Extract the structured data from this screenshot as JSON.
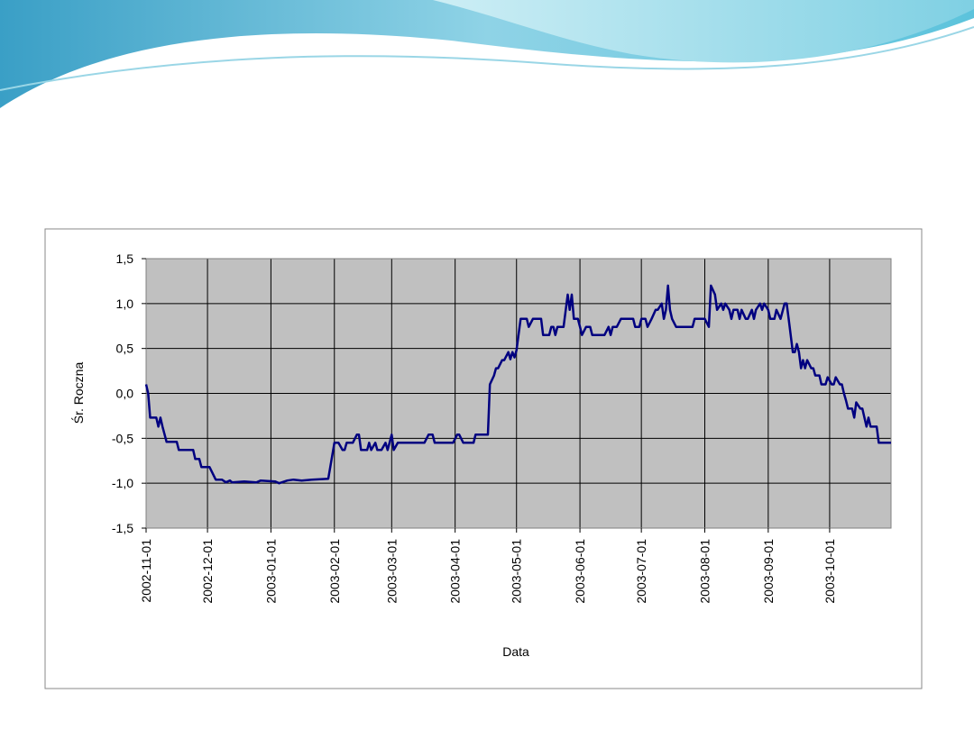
{
  "chart_data": {
    "type": "line",
    "xlabel": "Data",
    "ylabel": "Śr. Roczna",
    "xlim": [
      "2002-11-01",
      "2003-10-31"
    ],
    "xticks": [
      "2002-11-01",
      "2002-12-01",
      "2003-01-01",
      "2003-02-01",
      "2003-03-01",
      "2003-04-01",
      "2003-05-01",
      "2003-06-01",
      "2003-07-01",
      "2003-08-01",
      "2003-09-01",
      "2003-10-01"
    ],
    "ylim": [
      -1.5,
      1.5
    ],
    "yticks": [
      {
        "value": -1.5,
        "label": "-1,5"
      },
      {
        "value": -1,
        "label": "-1,0"
      },
      {
        "value": -0.5,
        "label": "-0,5"
      },
      {
        "value": 0,
        "label": "0,0"
      },
      {
        "value": 0.5,
        "label": "0,5"
      },
      {
        "value": 1,
        "label": "1,0"
      },
      {
        "value": 1.5,
        "label": "1,5"
      }
    ],
    "grid": true,
    "x": [
      "2002-11-01",
      "2002-11-02",
      "2002-11-03",
      "2002-11-06",
      "2002-11-07",
      "2002-11-08",
      "2002-11-09",
      "2002-11-11",
      "2002-11-16",
      "2002-11-17",
      "2002-11-24",
      "2002-11-25",
      "2002-11-27",
      "2002-11-28",
      "2002-12-02",
      "2002-12-05",
      "2002-12-08",
      "2002-12-10",
      "2002-12-12",
      "2002-12-13",
      "2002-12-19",
      "2002-12-25",
      "2002-12-27",
      "2003-01-03",
      "2003-01-05",
      "2003-01-09",
      "2003-01-12",
      "2003-01-16",
      "2003-01-21",
      "2003-01-29",
      "2003-02-01",
      "2003-02-03",
      "2003-02-05",
      "2003-02-06",
      "2003-02-07",
      "2003-02-10",
      "2003-02-12",
      "2003-02-13",
      "2003-02-14",
      "2003-02-17",
      "2003-02-18",
      "2003-02-19",
      "2003-02-21",
      "2003-02-22",
      "2003-02-24",
      "2003-02-26",
      "2003-02-27",
      "2003-03-01",
      "2003-03-02",
      "2003-03-04",
      "2003-03-17",
      "2003-03-19",
      "2003-03-21",
      "2003-03-22",
      "2003-03-31",
      "2003-04-02",
      "2003-04-03",
      "2003-04-05",
      "2003-04-10",
      "2003-04-11",
      "2003-04-17",
      "2003-04-18",
      "2003-04-20",
      "2003-04-21",
      "2003-04-22",
      "2003-04-24",
      "2003-04-25",
      "2003-04-27",
      "2003-04-28",
      "2003-04-29",
      "2003-04-30",
      "2003-05-01",
      "2003-05-03",
      "2003-05-06",
      "2003-05-07",
      "2003-05-09",
      "2003-05-13",
      "2003-05-14",
      "2003-05-17",
      "2003-05-18",
      "2003-05-19",
      "2003-05-20",
      "2003-05-21",
      "2003-05-24",
      "2003-05-26",
      "2003-05-27",
      "2003-05-28",
      "2003-05-29",
      "2003-05-31",
      "2003-06-01",
      "2003-06-02",
      "2003-06-04",
      "2003-06-06",
      "2003-06-07",
      "2003-06-13",
      "2003-06-15",
      "2003-06-16",
      "2003-06-17",
      "2003-06-19",
      "2003-06-21",
      "2003-06-27",
      "2003-06-28",
      "2003-06-30",
      "2003-07-01",
      "2003-07-03",
      "2003-07-04",
      "2003-07-06",
      "2003-07-08",
      "2003-07-09",
      "2003-07-11",
      "2003-07-12",
      "2003-07-13",
      "2003-07-14",
      "2003-07-15",
      "2003-07-16",
      "2003-07-18",
      "2003-07-26",
      "2003-07-27",
      "2003-08-01",
      "2003-08-03",
      "2003-08-04",
      "2003-08-06",
      "2003-08-07",
      "2003-08-09",
      "2003-08-10",
      "2003-08-11",
      "2003-08-13",
      "2003-08-14",
      "2003-08-15",
      "2003-08-17",
      "2003-08-18",
      "2003-08-19",
      "2003-08-21",
      "2003-08-22",
      "2003-08-24",
      "2003-08-25",
      "2003-08-26",
      "2003-08-28",
      "2003-08-29",
      "2003-08-30",
      "2003-09-01",
      "2003-09-02",
      "2003-09-04",
      "2003-09-05",
      "2003-09-07",
      "2003-09-09",
      "2003-09-10",
      "2003-09-11",
      "2003-09-13",
      "2003-09-14",
      "2003-09-15",
      "2003-09-16",
      "2003-09-17",
      "2003-09-18",
      "2003-09-19",
      "2003-09-20",
      "2003-09-22",
      "2003-09-23",
      "2003-09-24",
      "2003-09-26",
      "2003-09-27",
      "2003-09-29",
      "2003-09-30",
      "2003-10-02",
      "2003-10-03",
      "2003-10-04",
      "2003-10-06",
      "2003-10-07",
      "2003-10-08",
      "2003-10-09",
      "2003-10-10",
      "2003-10-12",
      "2003-10-13",
      "2003-10-14",
      "2003-10-16",
      "2003-10-17",
      "2003-10-18",
      "2003-10-19",
      "2003-10-20",
      "2003-10-21",
      "2003-10-24",
      "2003-10-25",
      "2003-10-31"
    ],
    "series": [
      {
        "name": "Śr. Roczna",
        "color": "#000080",
        "values": [
          0.1,
          0.0,
          -0.27,
          -0.27,
          -0.37,
          -0.27,
          -0.37,
          -0.54,
          -0.54,
          -0.63,
          -0.63,
          -0.73,
          -0.73,
          -0.82,
          -0.82,
          -0.96,
          -0.96,
          -0.99,
          -0.97,
          -0.99,
          -0.98,
          -0.99,
          -0.97,
          -0.98,
          -1.0,
          -0.97,
          -0.96,
          -0.97,
          -0.96,
          -0.95,
          -0.55,
          -0.55,
          -0.63,
          -0.63,
          -0.55,
          -0.55,
          -0.46,
          -0.46,
          -0.63,
          -0.63,
          -0.55,
          -0.63,
          -0.55,
          -0.63,
          -0.63,
          -0.55,
          -0.63,
          -0.46,
          -0.63,
          -0.55,
          -0.55,
          -0.46,
          -0.46,
          -0.55,
          -0.55,
          -0.46,
          -0.46,
          -0.55,
          -0.55,
          -0.46,
          -0.46,
          0.1,
          0.2,
          0.28,
          0.28,
          0.37,
          0.37,
          0.46,
          0.38,
          0.46,
          0.4,
          0.48,
          0.83,
          0.83,
          0.74,
          0.83,
          0.83,
          0.65,
          0.65,
          0.74,
          0.74,
          0.65,
          0.74,
          0.74,
          1.1,
          0.93,
          1.1,
          0.83,
          0.83,
          0.74,
          0.65,
          0.74,
          0.74,
          0.65,
          0.65,
          0.74,
          0.65,
          0.74,
          0.74,
          0.83,
          0.83,
          0.74,
          0.74,
          0.83,
          0.83,
          0.74,
          0.83,
          0.93,
          0.93,
          1.0,
          0.83,
          0.93,
          1.2,
          0.93,
          0.83,
          0.74,
          0.74,
          0.83,
          0.83,
          0.74,
          1.2,
          1.1,
          0.93,
          1.0,
          0.93,
          1.0,
          0.93,
          0.83,
          0.93,
          0.93,
          0.83,
          0.93,
          0.83,
          0.83,
          0.93,
          0.83,
          0.93,
          1.0,
          0.93,
          1.0,
          0.93,
          0.83,
          0.83,
          0.93,
          0.83,
          1.0,
          1.0,
          0.83,
          0.46,
          0.46,
          0.55,
          0.46,
          0.28,
          0.37,
          0.28,
          0.37,
          0.28,
          0.28,
          0.2,
          0.2,
          0.1,
          0.1,
          0.18,
          0.1,
          0.1,
          0.18,
          0.1,
          0.1,
          0.0,
          -0.08,
          -0.17,
          -0.17,
          -0.27,
          -0.1,
          -0.17,
          -0.17,
          -0.27,
          -0.37,
          -0.27,
          -0.37,
          -0.37,
          -0.55,
          -0.55
        ]
      }
    ]
  }
}
